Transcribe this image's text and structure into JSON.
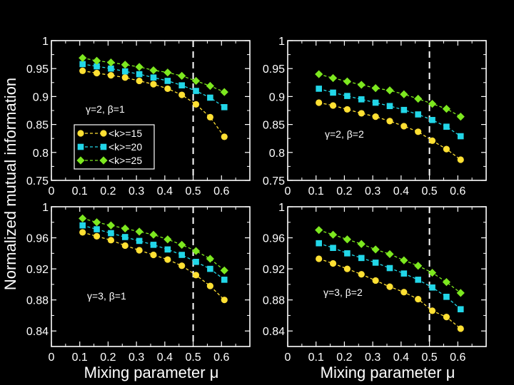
{
  "colors": {
    "background": "#000000",
    "axes": "#ffffff",
    "k15": "#ffe033",
    "k20": "#22d6e8",
    "k25": "#7de81f"
  },
  "figure": {
    "ylabel": "Normalized mutual information",
    "xlabel": "Mixing parameter  μ"
  },
  "chart_data": [
    {
      "type": "line",
      "panel": "top-left",
      "label": "γ=2,  β=1",
      "xlim": [
        0,
        0.7
      ],
      "ylim": [
        0.75,
        1.0
      ],
      "xticks": [
        0,
        0.1,
        0.2,
        0.3,
        0.4,
        0.5,
        0.6
      ],
      "xtick_labels": [
        "0",
        "0.1",
        "0.2",
        "0.3",
        "0.4",
        "0.5",
        "0.6"
      ],
      "yticks": [
        0.75,
        0.8,
        0.85,
        0.9,
        0.95,
        1.0
      ],
      "ytick_labels": [
        "0.75",
        "0.8",
        "0.85",
        "0.9",
        "0.95",
        "1"
      ],
      "vline": 0.5,
      "legend": true,
      "x": [
        0.11,
        0.16,
        0.21,
        0.26,
        0.31,
        0.36,
        0.41,
        0.46,
        0.51,
        0.56,
        0.61
      ],
      "series": [
        {
          "name": "<k>=15",
          "key": "k15",
          "marker": "circle",
          "values": [
            0.946,
            0.942,
            0.938,
            0.934,
            0.928,
            0.922,
            0.914,
            0.903,
            0.886,
            0.863,
            0.828
          ]
        },
        {
          "name": "<k>=20",
          "key": "k20",
          "marker": "square",
          "values": [
            0.958,
            0.954,
            0.95,
            0.945,
            0.94,
            0.934,
            0.928,
            0.92,
            0.91,
            0.898,
            0.881
          ]
        },
        {
          "name": "<k>=25",
          "key": "k25",
          "marker": "diamond",
          "values": [
            0.969,
            0.964,
            0.961,
            0.957,
            0.953,
            0.947,
            0.943,
            0.937,
            0.928,
            0.919,
            0.908
          ]
        }
      ]
    },
    {
      "type": "line",
      "panel": "top-right",
      "label": "γ=2,  β=2",
      "xlim": [
        0,
        0.7
      ],
      "ylim": [
        0.75,
        1.0
      ],
      "xticks": [
        0,
        0.1,
        0.2,
        0.3,
        0.4,
        0.5,
        0.6
      ],
      "xtick_labels": [
        "0",
        "0.1",
        "0.2",
        "0.3",
        "0.4",
        "0.5",
        "0.6"
      ],
      "yticks": [
        0.75,
        0.8,
        0.85,
        0.9,
        0.95,
        1.0
      ],
      "ytick_labels": [
        "0.75",
        "0.8",
        "0.85",
        "0.9",
        "0.95",
        "1"
      ],
      "vline": 0.5,
      "legend": false,
      "x": [
        0.11,
        0.16,
        0.21,
        0.26,
        0.31,
        0.36,
        0.41,
        0.46,
        0.51,
        0.56,
        0.61
      ],
      "series": [
        {
          "name": "<k>=15",
          "key": "k15",
          "marker": "circle",
          "values": [
            0.889,
            0.884,
            0.877,
            0.87,
            0.864,
            0.856,
            0.847,
            0.837,
            0.821,
            0.806,
            0.787
          ]
        },
        {
          "name": "<k>=20",
          "key": "k20",
          "marker": "square",
          "values": [
            0.914,
            0.907,
            0.901,
            0.895,
            0.889,
            0.883,
            0.876,
            0.868,
            0.858,
            0.846,
            0.829
          ]
        },
        {
          "name": "<k>=25",
          "key": "k25",
          "marker": "diamond",
          "values": [
            0.94,
            0.933,
            0.927,
            0.921,
            0.915,
            0.911,
            0.904,
            0.896,
            0.887,
            0.878,
            0.864
          ]
        }
      ]
    },
    {
      "type": "line",
      "panel": "bottom-left",
      "label": "γ=3,  β=1",
      "xlim": [
        0,
        0.7
      ],
      "ylim": [
        0.82,
        1.0
      ],
      "xticks": [
        0,
        0.1,
        0.2,
        0.3,
        0.4,
        0.5,
        0.6
      ],
      "xtick_labels": [
        "0",
        "0.1",
        "0.2",
        "0.3",
        "0.4",
        "0.5",
        "0.6"
      ],
      "yticks": [
        0.84,
        0.88,
        0.92,
        0.96,
        1.0
      ],
      "ytick_labels": [
        "0.84",
        "0.88",
        "0.92",
        "0.96",
        "1"
      ],
      "vline": 0.5,
      "legend": false,
      "x": [
        0.11,
        0.16,
        0.21,
        0.26,
        0.31,
        0.36,
        0.41,
        0.46,
        0.51,
        0.56,
        0.61
      ],
      "series": [
        {
          "name": "<k>=15",
          "key": "k15",
          "marker": "circle",
          "values": [
            0.967,
            0.962,
            0.957,
            0.95,
            0.944,
            0.938,
            0.932,
            0.924,
            0.912,
            0.898,
            0.88
          ]
        },
        {
          "name": "<k>=20",
          "key": "k20",
          "marker": "square",
          "values": [
            0.976,
            0.971,
            0.966,
            0.961,
            0.956,
            0.951,
            0.945,
            0.938,
            0.929,
            0.92,
            0.906
          ]
        },
        {
          "name": "<k>=25",
          "key": "k25",
          "marker": "diamond",
          "values": [
            0.985,
            0.98,
            0.976,
            0.972,
            0.968,
            0.964,
            0.958,
            0.951,
            0.943,
            0.933,
            0.918
          ]
        }
      ]
    },
    {
      "type": "line",
      "panel": "bottom-right",
      "label": "γ=3,  β=2",
      "xlim": [
        0,
        0.7
      ],
      "ylim": [
        0.82,
        1.0
      ],
      "xticks": [
        0,
        0.1,
        0.2,
        0.3,
        0.4,
        0.5,
        0.6
      ],
      "xtick_labels": [
        "0",
        "0.1",
        "0.2",
        "0.3",
        "0.4",
        "0.5",
        "0.6"
      ],
      "yticks": [
        0.84,
        0.88,
        0.92,
        0.96,
        1.0
      ],
      "ytick_labels": [
        "0.84",
        "0.88",
        "0.92",
        "0.96",
        "1"
      ],
      "vline": 0.5,
      "legend": false,
      "x": [
        0.11,
        0.16,
        0.21,
        0.26,
        0.31,
        0.36,
        0.41,
        0.46,
        0.51,
        0.56,
        0.61
      ],
      "series": [
        {
          "name": "<k>=15",
          "key": "k15",
          "marker": "circle",
          "values": [
            0.933,
            0.927,
            0.92,
            0.913,
            0.905,
            0.897,
            0.89,
            0.881,
            0.866,
            0.858,
            0.843
          ]
        },
        {
          "name": "<k>=20",
          "key": "k20",
          "marker": "square",
          "values": [
            0.953,
            0.947,
            0.94,
            0.934,
            0.928,
            0.921,
            0.914,
            0.906,
            0.896,
            0.884,
            0.868
          ]
        },
        {
          "name": "<k>=25",
          "key": "k25",
          "marker": "diamond",
          "values": [
            0.97,
            0.964,
            0.958,
            0.952,
            0.945,
            0.939,
            0.931,
            0.924,
            0.915,
            0.903,
            0.889
          ]
        }
      ]
    }
  ]
}
